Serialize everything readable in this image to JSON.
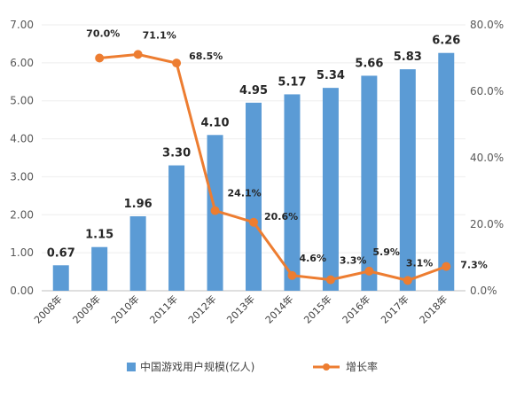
{
  "chart_data": {
    "type": "bar+line",
    "categories": [
      "2008年",
      "2009年",
      "2010年",
      "2011年",
      "2012年",
      "2013年",
      "2014年",
      "2015年",
      "2016年",
      "2017年",
      "2018年"
    ],
    "series": [
      {
        "name": "中国游戏用户规模(亿人)",
        "type": "bar",
        "axis": "left",
        "values": [
          0.67,
          1.15,
          1.96,
          3.3,
          4.1,
          4.95,
          5.17,
          5.34,
          5.66,
          5.83,
          6.26
        ],
        "labels": [
          "0.67",
          "1.15",
          "1.96",
          "3.30",
          "4.10",
          "4.95",
          "5.17",
          "5.34",
          "5.66",
          "5.83",
          "6.26"
        ]
      },
      {
        "name": "增长率",
        "type": "line",
        "axis": "right",
        "values": [
          null,
          70.0,
          71.1,
          68.5,
          24.1,
          20.6,
          4.6,
          3.3,
          5.9,
          3.1,
          7.3
        ],
        "labels": [
          "",
          "70.0%",
          "71.1%",
          "68.5%",
          "24.1%",
          "20.6%",
          "4.6%",
          "3.3%",
          "5.9%",
          "3.1%",
          "7.3%"
        ]
      }
    ],
    "left_axis": {
      "min": 0,
      "max": 7,
      "ticks": [
        "0.00",
        "1.00",
        "2.00",
        "3.00",
        "4.00",
        "5.00",
        "6.00",
        "7.00"
      ]
    },
    "right_axis": {
      "min": 0,
      "max": 80,
      "ticks": [
        "0.0%",
        "20.0%",
        "40.0%",
        "60.0%",
        "80.0%"
      ]
    },
    "colors": {
      "bar": "#5b9bd5",
      "line": "#ed7d31",
      "grid": "#d9d9d9"
    },
    "legend": {
      "position": "bottom",
      "items": [
        "中国游戏用户规模(亿人)",
        "增长率"
      ]
    }
  }
}
